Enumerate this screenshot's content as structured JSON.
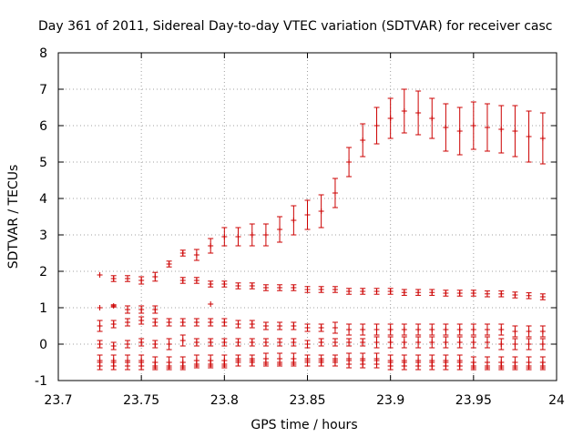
{
  "chart_data": {
    "type": "scatter",
    "title": "Day 361 of 2011, Sidereal Day-to-day VTEC variation (SDTVAR) for receiver casc",
    "xlabel": "GPS time / hours",
    "ylabel": "SDTVAR / TECUs",
    "xlim": [
      23.7,
      24
    ],
    "ylim": [
      -1,
      8
    ],
    "xticks": [
      "23.7",
      "23.75",
      "23.8",
      "23.85",
      "23.9",
      "23.95",
      "24"
    ],
    "yticks": [
      "-1",
      "0",
      "1",
      "2",
      "3",
      "4",
      "5",
      "6",
      "7",
      "8"
    ],
    "grid": true,
    "color": "#cc0000",
    "series": [
      {
        "x": [
          23.775,
          23.7833,
          23.7917,
          23.8,
          23.8083,
          23.8167,
          23.825,
          23.8333,
          23.8417,
          23.85,
          23.8583,
          23.8667,
          23.875,
          23.8833,
          23.8917,
          23.9,
          23.9083,
          23.9167,
          23.925,
          23.9333,
          23.9417,
          23.95,
          23.9583,
          23.9667,
          23.975,
          23.9833,
          23.9917
        ],
        "values": [
          2.5,
          2.45,
          2.7,
          2.95,
          2.95,
          3.0,
          3.0,
          3.15,
          3.4,
          3.55,
          3.65,
          4.15,
          5.0,
          5.6,
          6.0,
          6.2,
          6.4,
          6.35,
          6.2,
          5.95,
          5.85,
          6.0,
          5.95,
          5.9,
          5.85,
          5.7,
          5.65
        ],
        "errors": [
          0.08,
          0.15,
          0.2,
          0.25,
          0.25,
          0.3,
          0.3,
          0.35,
          0.4,
          0.4,
          0.45,
          0.4,
          0.4,
          0.45,
          0.5,
          0.55,
          0.6,
          0.6,
          0.55,
          0.65,
          0.65,
          0.65,
          0.65,
          0.65,
          0.7,
          0.7,
          0.7
        ]
      },
      {
        "x": [
          23.725,
          23.7333,
          23.7417,
          23.75,
          23.7583,
          23.7667,
          23.775,
          23.7833,
          23.7917,
          23.8,
          23.8083,
          23.8167,
          23.825,
          23.8333,
          23.8417,
          23.85,
          23.8583,
          23.8667,
          23.875,
          23.8833,
          23.8917,
          23.9,
          23.9083,
          23.9167,
          23.925,
          23.9333,
          23.9417,
          23.95,
          23.9583,
          23.9667,
          23.975,
          23.9833,
          23.9917
        ],
        "values": [
          1.9,
          1.8,
          1.8,
          1.75,
          1.85,
          2.2,
          1.75,
          1.75,
          1.65,
          1.65,
          1.6,
          1.6,
          1.55,
          1.55,
          1.55,
          1.5,
          1.5,
          1.5,
          1.45,
          1.45,
          1.45,
          1.45,
          1.42,
          1.42,
          1.42,
          1.4,
          1.4,
          1.4,
          1.38,
          1.38,
          1.35,
          1.33,
          1.3
        ],
        "errors": [
          0.0,
          0.08,
          0.08,
          0.1,
          0.12,
          0.08,
          0.08,
          0.08,
          0.08,
          0.08,
          0.08,
          0.08,
          0.08,
          0.08,
          0.08,
          0.08,
          0.08,
          0.08,
          0.08,
          0.08,
          0.08,
          0.08,
          0.08,
          0.08,
          0.08,
          0.08,
          0.08,
          0.08,
          0.08,
          0.08,
          0.08,
          0.08,
          0.08
        ]
      },
      {
        "x": [
          23.725,
          23.7333,
          23.7417,
          23.75,
          23.7583,
          23.7917
        ],
        "values": [
          1.0,
          1.05,
          0.95,
          0.95,
          0.95,
          1.1
        ],
        "errors": [
          0.0,
          0.03,
          0.1,
          0.1,
          0.1,
          0.0
        ]
      },
      {
        "x": [
          23.725,
          23.7333,
          23.7417,
          23.75,
          23.7583,
          23.7667,
          23.775,
          23.7833,
          23.7917,
          23.8,
          23.8083,
          23.8167,
          23.825,
          23.8333,
          23.8417,
          23.85,
          23.8583,
          23.8667,
          23.875,
          23.8833,
          23.8917,
          23.9,
          23.9083,
          23.9167,
          23.925,
          23.9333,
          23.9417,
          23.95,
          23.9583,
          23.9667,
          23.975,
          23.9833,
          23.9917
        ],
        "values": [
          0.5,
          0.55,
          0.6,
          0.65,
          0.6,
          0.6,
          0.6,
          0.6,
          0.6,
          0.6,
          0.55,
          0.55,
          0.5,
          0.5,
          0.5,
          0.45,
          0.45,
          0.45,
          0.4,
          0.4,
          0.4,
          0.4,
          0.4,
          0.4,
          0.4,
          0.4,
          0.4,
          0.4,
          0.4,
          0.4,
          0.35,
          0.35,
          0.35
        ],
        "errors": [
          0.15,
          0.1,
          0.1,
          0.1,
          0.1,
          0.1,
          0.1,
          0.1,
          0.1,
          0.1,
          0.1,
          0.1,
          0.1,
          0.1,
          0.1,
          0.1,
          0.1,
          0.15,
          0.15,
          0.15,
          0.15,
          0.15,
          0.15,
          0.15,
          0.15,
          0.15,
          0.15,
          0.15,
          0.15,
          0.15,
          0.15,
          0.15,
          0.15
        ]
      },
      {
        "x": [
          23.725,
          23.7333,
          23.7417,
          23.75,
          23.7583,
          23.7667,
          23.775,
          23.7833,
          23.7917,
          23.8,
          23.8083,
          23.8167,
          23.825,
          23.8333,
          23.8417,
          23.85,
          23.8583,
          23.8667,
          23.875,
          23.8833,
          23.8917,
          23.9,
          23.9083,
          23.9167,
          23.925,
          23.9333,
          23.9417,
          23.95,
          23.9583,
          23.9667,
          23.975,
          23.9833,
          23.9917
        ],
        "values": [
          0.0,
          -0.05,
          0.0,
          0.05,
          0.0,
          0.0,
          0.1,
          0.05,
          0.05,
          0.05,
          0.05,
          0.05,
          0.05,
          0.05,
          0.05,
          0.0,
          0.05,
          0.05,
          0.05,
          0.05,
          0.05,
          0.05,
          0.05,
          0.05,
          0.05,
          0.05,
          0.05,
          0.05,
          0.05,
          0.0,
          0.0,
          0.0,
          0.0
        ],
        "errors": [
          0.1,
          0.1,
          0.1,
          0.1,
          0.1,
          0.15,
          0.15,
          0.1,
          0.1,
          0.1,
          0.1,
          0.1,
          0.1,
          0.1,
          0.1,
          0.1,
          0.1,
          0.1,
          0.1,
          0.1,
          0.15,
          0.15,
          0.15,
          0.15,
          0.15,
          0.15,
          0.15,
          0.15,
          0.15,
          0.15,
          0.15,
          0.15,
          0.15
        ]
      },
      {
        "x": [
          23.725,
          23.7333,
          23.7417,
          23.75,
          23.7583,
          23.7667,
          23.775,
          23.7833,
          23.7917,
          23.8,
          23.8083,
          23.8167,
          23.825,
          23.8333,
          23.8417,
          23.85,
          23.8583,
          23.8667,
          23.875,
          23.8833,
          23.8917,
          23.9,
          23.9083,
          23.9167,
          23.925,
          23.9333,
          23.9417,
          23.95,
          23.9583,
          23.9667,
          23.975,
          23.9833,
          23.9917
        ],
        "values": [
          -0.45,
          -0.45,
          -0.45,
          -0.45,
          -0.5,
          -0.5,
          -0.5,
          -0.45,
          -0.45,
          -0.45,
          -0.45,
          -0.45,
          -0.4,
          -0.4,
          -0.4,
          -0.45,
          -0.45,
          -0.45,
          -0.4,
          -0.4,
          -0.4,
          -0.45,
          -0.45,
          -0.45,
          -0.45,
          -0.45,
          -0.45,
          -0.5,
          -0.5,
          -0.5,
          -0.5,
          -0.5,
          -0.5
        ],
        "errors": [
          0.15,
          0.15,
          0.15,
          0.15,
          0.15,
          0.15,
          0.15,
          0.15,
          0.15,
          0.15,
          0.15,
          0.15,
          0.15,
          0.15,
          0.15,
          0.15,
          0.15,
          0.15,
          0.15,
          0.15,
          0.15,
          0.15,
          0.15,
          0.15,
          0.15,
          0.15,
          0.15,
          0.15,
          0.15,
          0.15,
          0.15,
          0.15,
          0.15
        ]
      },
      {
        "x": [
          23.725,
          23.7333,
          23.7417,
          23.75,
          23.7583,
          23.7667,
          23.775,
          23.7833,
          23.7917,
          23.8,
          23.8083,
          23.8167,
          23.825,
          23.8333,
          23.8417,
          23.85,
          23.8583,
          23.8667,
          23.875,
          23.8833,
          23.8917,
          23.9,
          23.9083,
          23.9167,
          23.925,
          23.9333,
          23.9417,
          23.95,
          23.9583,
          23.9667,
          23.975,
          23.9833,
          23.9917
        ],
        "values": [
          -0.6,
          -0.6,
          -0.6,
          -0.6,
          -0.6,
          -0.6,
          -0.6,
          -0.55,
          -0.55,
          -0.55,
          -0.5,
          -0.5,
          -0.5,
          -0.5,
          -0.5,
          -0.5,
          -0.5,
          -0.5,
          -0.55,
          -0.55,
          -0.55,
          -0.6,
          -0.6,
          -0.6,
          -0.6,
          -0.6,
          -0.6,
          -0.6,
          -0.6,
          -0.6,
          -0.6,
          -0.6,
          -0.6
        ],
        "errors": [
          0.1,
          0.1,
          0.1,
          0.1,
          0.1,
          0.1,
          0.1,
          0.1,
          0.1,
          0.1,
          0.1,
          0.1,
          0.1,
          0.1,
          0.1,
          0.1,
          0.1,
          0.1,
          0.1,
          0.1,
          0.1,
          0.1,
          0.1,
          0.1,
          0.1,
          0.1,
          0.1,
          0.1,
          0.1,
          0.1,
          0.1,
          0.1,
          0.1
        ]
      }
    ]
  }
}
